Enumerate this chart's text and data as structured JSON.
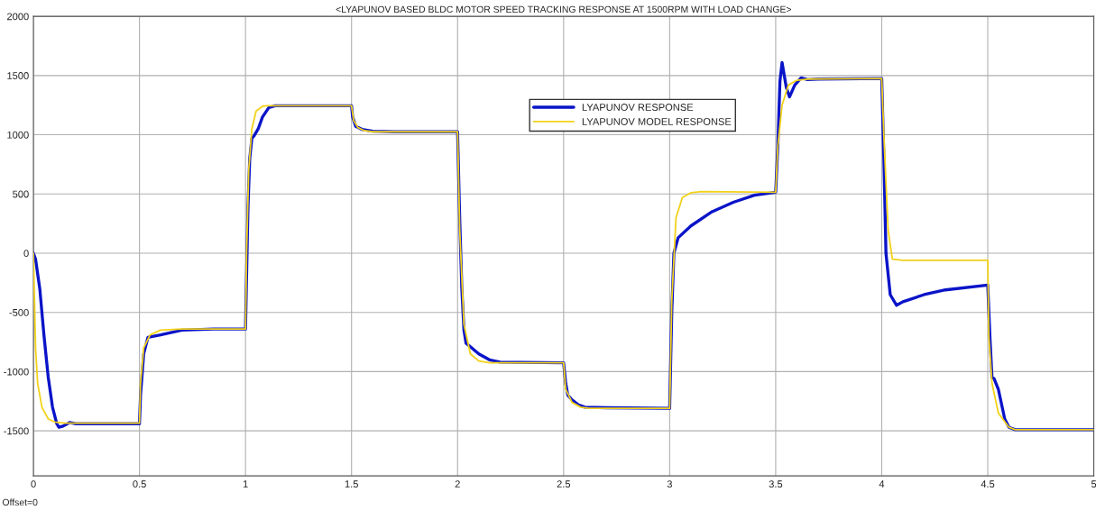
{
  "chart_data": {
    "type": "line",
    "title": "<LYAPUNOV BASED BLDC MOTOR SPEED TRACKING RESPONSE AT 1500RPM WITH LOAD CHANGE>",
    "annotations": [
      "Offset=0"
    ],
    "xlim": [
      0,
      5
    ],
    "ylim": [
      -1880,
      2000
    ],
    "xticks": [
      0,
      0.5,
      1,
      1.5,
      2,
      2.5,
      3,
      3.5,
      4,
      4.5,
      5
    ],
    "yticks": [
      -1500,
      -1000,
      -500,
      0,
      500,
      1000,
      1500,
      2000
    ],
    "grid": true,
    "legend": "top",
    "marker": "none",
    "line_style": "solid",
    "series": [
      {
        "name": "LYAPUNOV RESPONSE",
        "color": "#0a14c8",
        "x": [
          0,
          0.01,
          0.03,
          0.05,
          0.07,
          0.09,
          0.11,
          0.12,
          0.14,
          0.17,
          0.2,
          0.3,
          0.5,
          0.505,
          0.52,
          0.54,
          0.6,
          0.7,
          0.85,
          1.0,
          1.005,
          1.012,
          1.02,
          1.03,
          1.04,
          1.06,
          1.08,
          1.11,
          1.14,
          1.2,
          1.5,
          1.505,
          1.52,
          1.55,
          1.6,
          1.7,
          2.0,
          2.01,
          2.02,
          2.03,
          2.04,
          2.06,
          2.1,
          2.15,
          2.2,
          2.5,
          2.51,
          2.52,
          2.54,
          2.57,
          2.6,
          2.7,
          3.0,
          3.01,
          3.02,
          3.04,
          3.1,
          3.2,
          3.3,
          3.4,
          3.5,
          3.51,
          3.52,
          3.53,
          3.55,
          3.565,
          3.59,
          3.62,
          3.65,
          3.7,
          4.0,
          4.01,
          4.02,
          4.04,
          4.07,
          4.1,
          4.2,
          4.3,
          4.5,
          4.51,
          4.52,
          4.53,
          4.55,
          4.58,
          4.6,
          4.63,
          5.0
        ],
        "values": [
          0,
          -50,
          -300,
          -700,
          -1050,
          -1300,
          -1440,
          -1470,
          -1460,
          -1430,
          -1440,
          -1440,
          -1440,
          -1200,
          -850,
          -710,
          -690,
          -650,
          -640,
          -640,
          -200,
          400,
          800,
          970,
          990,
          1050,
          1150,
          1230,
          1245,
          1245,
          1245,
          1150,
          1070,
          1045,
          1030,
          1025,
          1025,
          300,
          -300,
          -650,
          -760,
          -790,
          -850,
          -900,
          -920,
          -925,
          -1100,
          -1200,
          -1240,
          -1280,
          -1300,
          -1305,
          -1310,
          -500,
          0,
          130,
          230,
          350,
          430,
          490,
          515,
          900,
          1450,
          1610,
          1400,
          1320,
          1420,
          1480,
          1465,
          1470,
          1475,
          800,
          0,
          -350,
          -440,
          -410,
          -350,
          -310,
          -270,
          -700,
          -1050,
          -1060,
          -1150,
          -1400,
          -1470,
          -1490,
          -1490
        ]
      },
      {
        "name": "LYAPUNOV MODEL RESPONSE",
        "color": "#f2d21a",
        "x": [
          0,
          0.005,
          0.01,
          0.02,
          0.04,
          0.07,
          0.1,
          0.15,
          0.5,
          0.505,
          0.52,
          0.55,
          0.6,
          0.7,
          1.0,
          1.005,
          1.015,
          1.03,
          1.05,
          1.08,
          1.1,
          1.5,
          1.51,
          1.53,
          1.56,
          1.6,
          2.0,
          2.01,
          2.03,
          2.06,
          2.1,
          2.15,
          2.5,
          2.51,
          2.54,
          2.58,
          2.62,
          3.0,
          3.01,
          3.03,
          3.06,
          3.1,
          3.15,
          3.5,
          3.51,
          3.53,
          3.56,
          3.6,
          3.65,
          4.0,
          4.01,
          4.03,
          4.05,
          4.1,
          4.5,
          4.505,
          4.52,
          4.55,
          4.6,
          4.63,
          5.0
        ],
        "values": [
          0,
          -400,
          -800,
          -1100,
          -1300,
          -1400,
          -1425,
          -1435,
          -1435,
          -1100,
          -800,
          -690,
          -650,
          -640,
          -640,
          0,
          700,
          1050,
          1200,
          1240,
          1245,
          1245,
          1120,
          1060,
          1035,
          1025,
          1025,
          200,
          -600,
          -850,
          -910,
          -925,
          -925,
          -1150,
          -1260,
          -1300,
          -1310,
          -1310,
          -400,
          300,
          470,
          510,
          520,
          515,
          900,
          1250,
          1420,
          1460,
          1470,
          1475,
          1000,
          200,
          -50,
          -60,
          -60,
          -700,
          -1100,
          -1350,
          -1470,
          -1490,
          -1490
        ]
      }
    ]
  }
}
